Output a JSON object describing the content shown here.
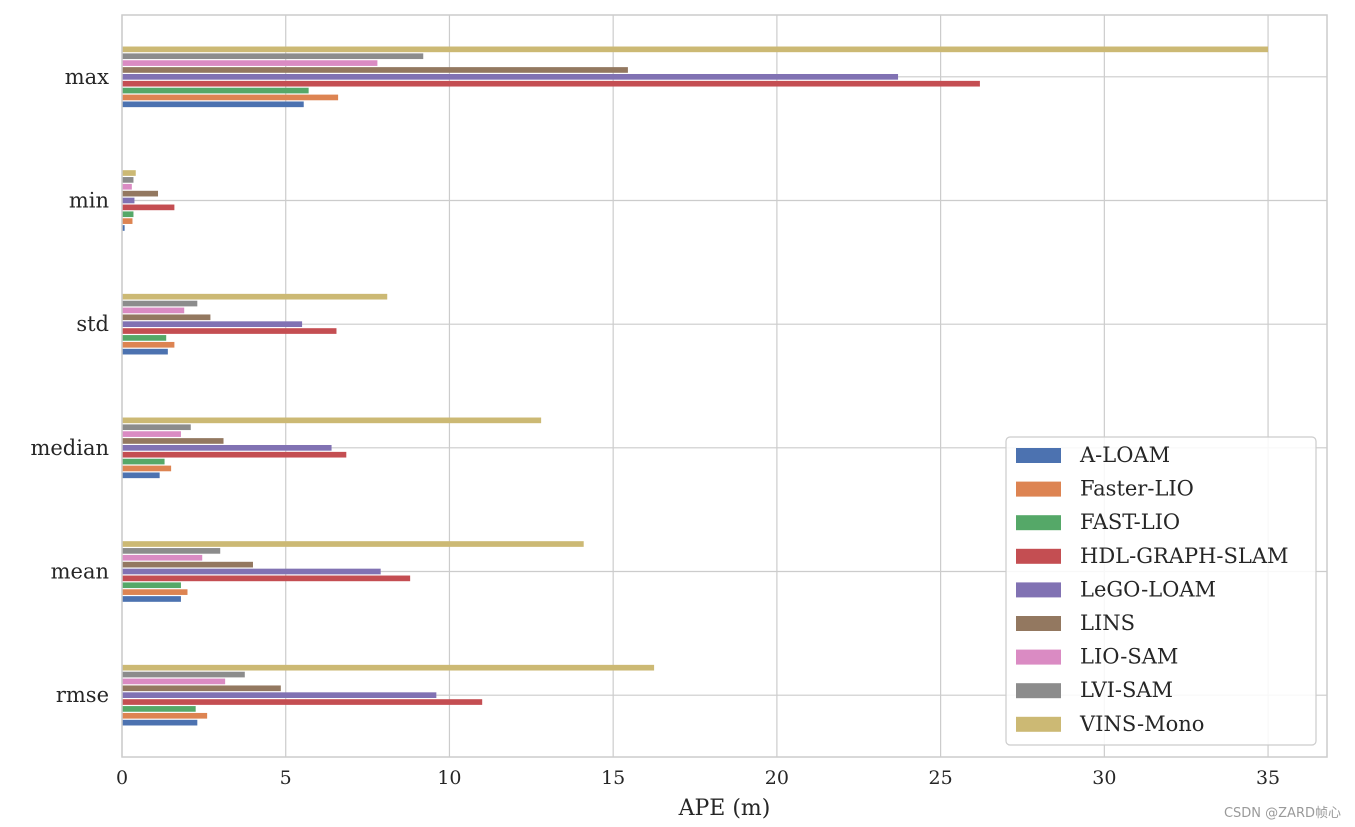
{
  "chart_data": {
    "type": "bar",
    "orientation": "horizontal",
    "categories": [
      "max",
      "min",
      "std",
      "median",
      "mean",
      "rmse"
    ],
    "xlabel": "APE (m)",
    "ylabel": "",
    "xlim": [
      0,
      36.8
    ],
    "xticks": [
      0,
      5,
      10,
      15,
      20,
      25,
      30,
      35
    ],
    "grid": true,
    "legend_position": "bottom-right",
    "series": [
      {
        "name": "A-LOAM",
        "color": "#4c72b0",
        "values": [
          5.55,
          0.08,
          1.4,
          1.15,
          1.8,
          2.3
        ]
      },
      {
        "name": "Faster-LIO",
        "color": "#dd8452",
        "values": [
          6.6,
          0.32,
          1.6,
          1.5,
          2.0,
          2.6
        ]
      },
      {
        "name": "FAST-LIO",
        "color": "#55a868",
        "values": [
          5.7,
          0.35,
          1.35,
          1.3,
          1.8,
          2.25
        ]
      },
      {
        "name": "HDL-GRAPH-SLAM",
        "color": "#c44e52",
        "values": [
          26.2,
          1.6,
          6.55,
          6.85,
          8.8,
          11.0
        ]
      },
      {
        "name": "LeGO-LOAM",
        "color": "#8172b3",
        "values": [
          23.7,
          0.38,
          5.5,
          6.4,
          7.9,
          9.6
        ]
      },
      {
        "name": "LINS",
        "color": "#937860",
        "values": [
          15.45,
          1.1,
          2.7,
          3.1,
          4.0,
          4.85
        ]
      },
      {
        "name": "LIO-SAM",
        "color": "#da8bc3",
        "values": [
          7.8,
          0.3,
          1.9,
          1.8,
          2.45,
          3.15
        ]
      },
      {
        "name": "LVI-SAM",
        "color": "#8c8c8c",
        "values": [
          9.2,
          0.35,
          2.3,
          2.1,
          3.0,
          3.75
        ]
      },
      {
        "name": "VINS-Mono",
        "color": "#ccb974",
        "values": [
          35.0,
          0.42,
          8.1,
          12.8,
          14.1,
          16.25
        ]
      }
    ]
  },
  "watermark": "CSDN @ZARD帧心"
}
